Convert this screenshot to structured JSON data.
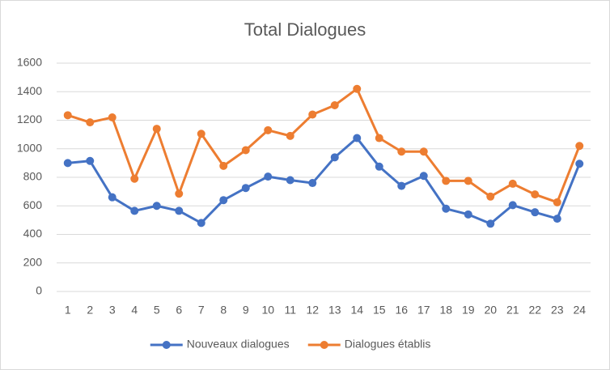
{
  "chart_data": {
    "type": "line",
    "title": "Total Dialogues",
    "categories": [
      "1",
      "2",
      "3",
      "4",
      "5",
      "6",
      "7",
      "8",
      "9",
      "10",
      "11",
      "12",
      "13",
      "14",
      "15",
      "16",
      "17",
      "18",
      "19",
      "20",
      "21",
      "22",
      "23",
      "24"
    ],
    "series": [
      {
        "name": "Nouveaux dialogues",
        "color": "#4472c4",
        "values": [
          900,
          915,
          660,
          565,
          600,
          565,
          480,
          640,
          725,
          805,
          780,
          760,
          940,
          1075,
          875,
          740,
          810,
          580,
          540,
          475,
          605,
          555,
          510,
          895
        ]
      },
      {
        "name": "Dialogues établis",
        "color": "#ed7d31",
        "values": [
          1235,
          1185,
          1220,
          790,
          1140,
          685,
          1105,
          880,
          990,
          1130,
          1090,
          1240,
          1305,
          1420,
          1075,
          980,
          980,
          775,
          775,
          665,
          755,
          680,
          625,
          1020
        ]
      }
    ],
    "ylim": [
      0,
      1600
    ],
    "yticks": [
      0,
      200,
      400,
      600,
      800,
      1000,
      1200,
      1400,
      1600
    ],
    "grid": true,
    "legend": "bottom"
  }
}
